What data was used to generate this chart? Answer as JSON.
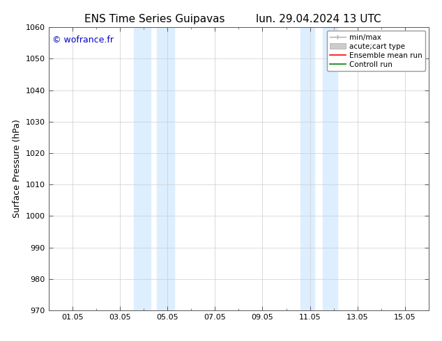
{
  "title_left": "ENS Time Series Guipavas",
  "title_right": "lun. 29.04.2024 13 UTC",
  "ylabel": "Surface Pressure (hPa)",
  "ylim": [
    970,
    1060
  ],
  "yticks": [
    970,
    980,
    990,
    1000,
    1010,
    1020,
    1030,
    1040,
    1050,
    1060
  ],
  "xtick_labels": [
    "01.05",
    "03.05",
    "05.05",
    "07.05",
    "09.05",
    "11.05",
    "13.05",
    "15.05"
  ],
  "watermark": "© wofrance.fr",
  "watermark_color": "#0000cc",
  "shade_color": "#ddeeff",
  "background_color": "#ffffff",
  "plot_bg_color": "#ffffff",
  "grid_color": "#cccccc",
  "legend_items": [
    {
      "label": "min/max",
      "color": "#aaaaaa",
      "lw": 1.0
    },
    {
      "label": "acute;cart type",
      "color": "#cccccc",
      "lw": 6
    },
    {
      "label": "Ensemble mean run",
      "color": "#ff0000",
      "lw": 1.2
    },
    {
      "label": "Controll run",
      "color": "#008000",
      "lw": 1.2
    }
  ],
  "title_fontsize": 11,
  "tick_fontsize": 8,
  "ylabel_fontsize": 9,
  "legend_fontsize": 7.5
}
